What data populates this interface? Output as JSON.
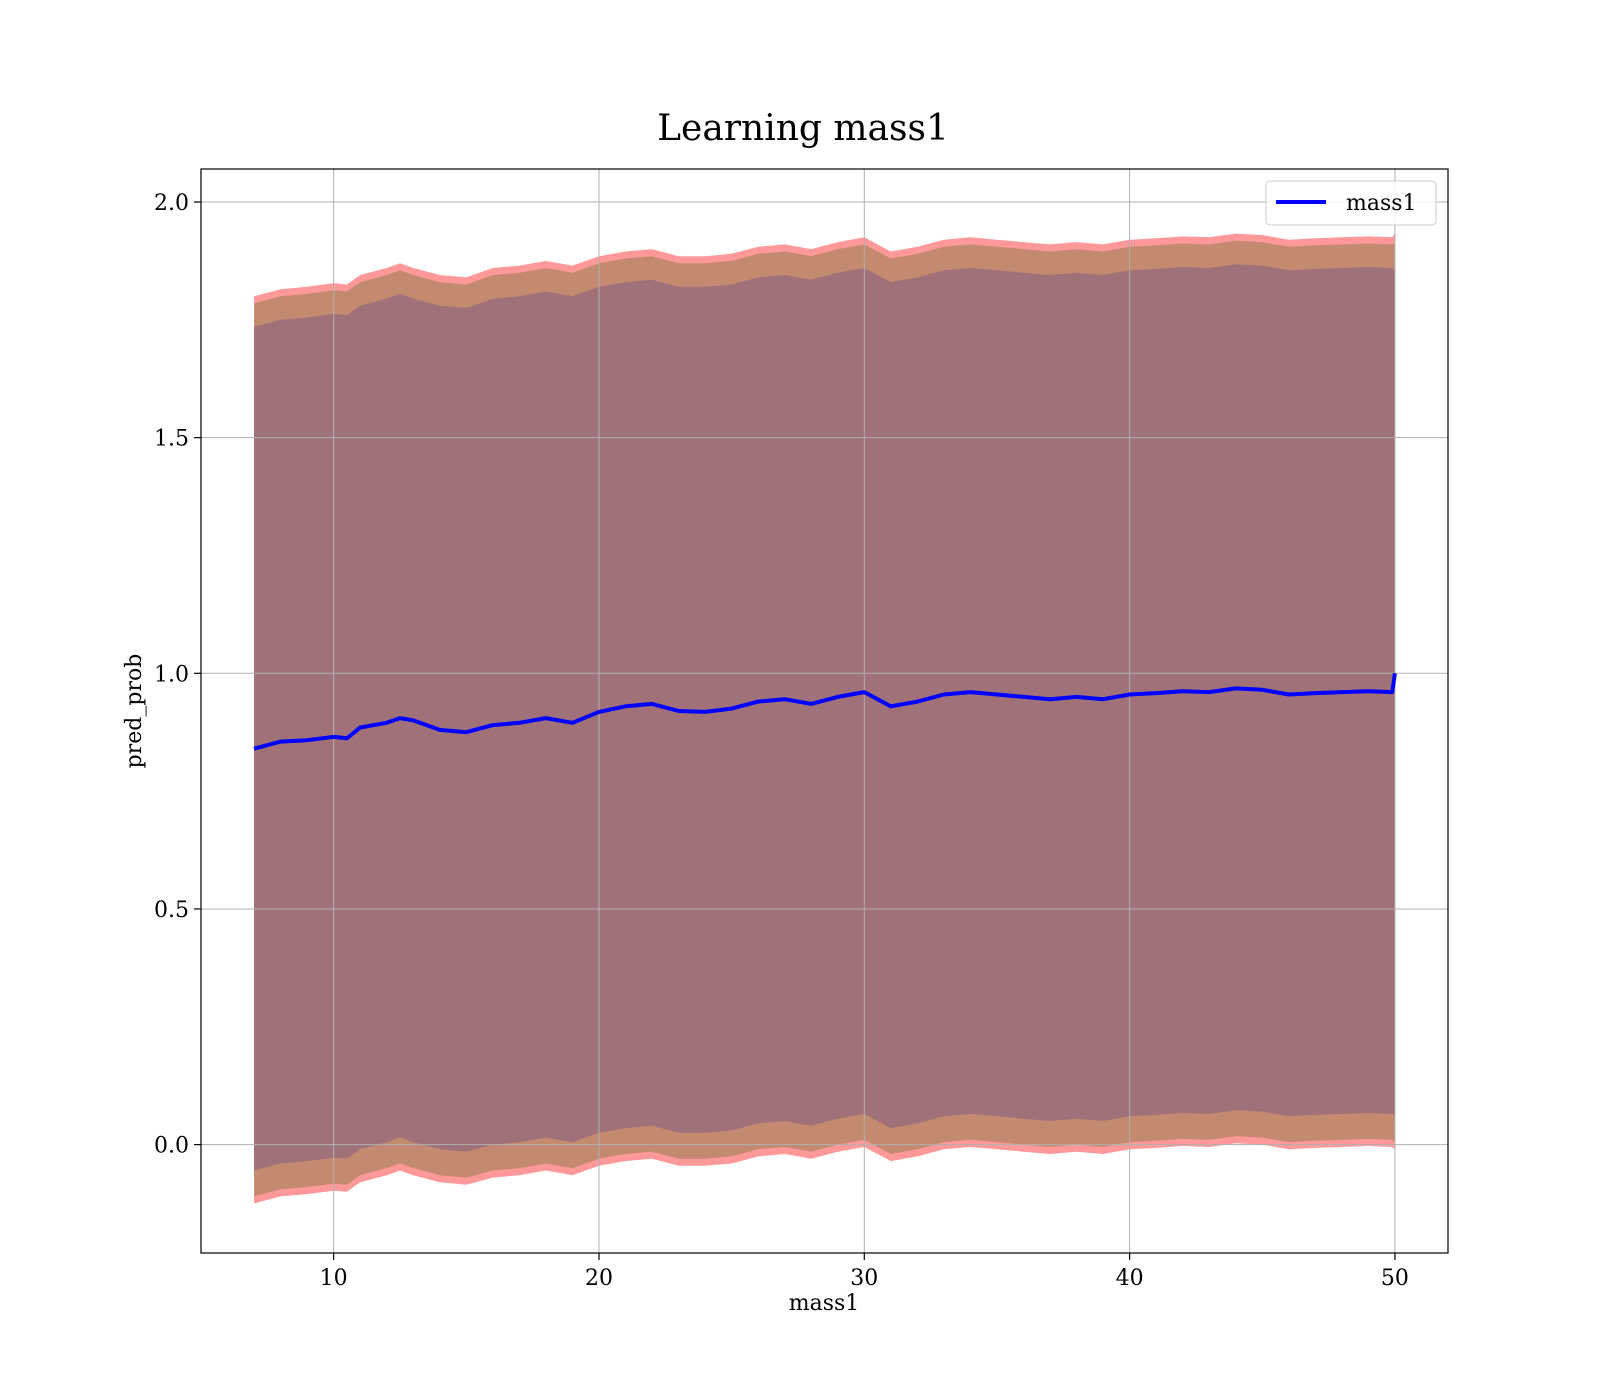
{
  "chart_data": {
    "type": "line",
    "title": "Learning mass1",
    "xlabel": "mass1",
    "ylabel": "pred_prob",
    "xlim": [
      5,
      52
    ],
    "ylim": [
      -0.23,
      2.07
    ],
    "xticks": [
      10,
      20,
      30,
      40,
      50
    ],
    "xtick_labels": [
      "10",
      "20",
      "30",
      "40",
      "50"
    ],
    "yticks": [
      0.0,
      0.5,
      1.0,
      1.5,
      2.0
    ],
    "ytick_labels": [
      "0.0",
      "0.5",
      "1.0",
      "1.5",
      "2.0"
    ],
    "grid": true,
    "legend_position": "top-right",
    "colors": {
      "line": "#0000ff",
      "outer_band": "#ff9999",
      "middle_band": "#c48a6f",
      "inner_band": "#a1717a"
    },
    "series": [
      {
        "name": "mass1",
        "x": [
          7,
          8,
          9,
          10,
          10.5,
          11,
          12,
          12.5,
          13,
          14,
          15,
          16,
          17,
          18,
          19,
          20,
          21,
          22,
          23,
          24,
          25,
          26,
          27,
          28,
          29,
          30,
          31,
          32,
          33,
          34,
          35,
          36,
          37,
          38,
          39,
          40,
          41,
          42,
          43,
          44,
          45,
          46,
          47,
          48,
          49,
          49.9,
          50
        ],
        "y": [
          0.84,
          0.855,
          0.858,
          0.865,
          0.862,
          0.885,
          0.895,
          0.905,
          0.9,
          0.88,
          0.875,
          0.89,
          0.895,
          0.905,
          0.895,
          0.918,
          0.93,
          0.935,
          0.92,
          0.918,
          0.925,
          0.94,
          0.945,
          0.935,
          0.95,
          0.96,
          0.93,
          0.94,
          0.955,
          0.96,
          0.955,
          0.95,
          0.945,
          0.95,
          0.945,
          0.955,
          0.958,
          0.962,
          0.96,
          0.968,
          0.965,
          0.955,
          0.958,
          0.96,
          0.962,
          0.96,
          1.0
        ]
      }
    ],
    "bands": [
      {
        "x": [
          7,
          8,
          9,
          10,
          10.5,
          11,
          12,
          12.5,
          13,
          14,
          15,
          16,
          17,
          18,
          19,
          20,
          21,
          22,
          23,
          24,
          25,
          26,
          27,
          28,
          29,
          30,
          31,
          32,
          33,
          34,
          35,
          36,
          37,
          38,
          39,
          40,
          41,
          42,
          43,
          44,
          45,
          46,
          47,
          48,
          49,
          49.9,
          50
        ],
        "upper": [
          1.8,
          1.815,
          1.82,
          1.828,
          1.825,
          1.845,
          1.86,
          1.87,
          1.86,
          1.845,
          1.84,
          1.86,
          1.865,
          1.875,
          1.865,
          1.885,
          1.895,
          1.9,
          1.885,
          1.885,
          1.89,
          1.905,
          1.91,
          1.9,
          1.915,
          1.925,
          1.895,
          1.905,
          1.92,
          1.925,
          1.92,
          1.915,
          1.91,
          1.915,
          1.91,
          1.92,
          1.923,
          1.927,
          1.925,
          1.933,
          1.93,
          1.92,
          1.923,
          1.925,
          1.927,
          1.925,
          1.935
        ],
        "lower": [
          -0.125,
          -0.11,
          -0.105,
          -0.098,
          -0.1,
          -0.08,
          -0.065,
          -0.055,
          -0.065,
          -0.08,
          -0.085,
          -0.07,
          -0.065,
          -0.055,
          -0.065,
          -0.045,
          -0.035,
          -0.03,
          -0.045,
          -0.045,
          -0.04,
          -0.025,
          -0.02,
          -0.03,
          -0.015,
          -0.005,
          -0.035,
          -0.025,
          -0.01,
          -0.005,
          -0.01,
          -0.015,
          -0.02,
          -0.015,
          -0.02,
          -0.01,
          -0.007,
          -0.003,
          -0.005,
          0.003,
          0.0,
          -0.01,
          -0.007,
          -0.005,
          -0.003,
          -0.005,
          -0.01
        ]
      },
      {
        "x": [
          7,
          8,
          9,
          10,
          10.5,
          11,
          12,
          12.5,
          13,
          14,
          15,
          16,
          17,
          18,
          19,
          20,
          21,
          22,
          23,
          24,
          25,
          26,
          27,
          28,
          29,
          30,
          31,
          32,
          33,
          34,
          35,
          36,
          37,
          38,
          39,
          40,
          41,
          42,
          43,
          44,
          45,
          46,
          47,
          48,
          49,
          49.9,
          50
        ],
        "upper": [
          1.785,
          1.8,
          1.805,
          1.813,
          1.81,
          1.83,
          1.845,
          1.855,
          1.845,
          1.83,
          1.825,
          1.845,
          1.85,
          1.86,
          1.85,
          1.87,
          1.88,
          1.885,
          1.87,
          1.87,
          1.875,
          1.89,
          1.895,
          1.885,
          1.9,
          1.91,
          1.88,
          1.89,
          1.905,
          1.91,
          1.905,
          1.9,
          1.895,
          1.9,
          1.895,
          1.905,
          1.908,
          1.912,
          1.91,
          1.918,
          1.915,
          1.905,
          1.908,
          1.91,
          1.912,
          1.91,
          1.915
        ],
        "lower": [
          -0.11,
          -0.095,
          -0.09,
          -0.083,
          -0.085,
          -0.065,
          -0.05,
          -0.04,
          -0.05,
          -0.065,
          -0.07,
          -0.055,
          -0.05,
          -0.04,
          -0.05,
          -0.03,
          -0.02,
          -0.015,
          -0.03,
          -0.03,
          -0.025,
          -0.01,
          -0.005,
          -0.015,
          0.0,
          0.01,
          -0.02,
          -0.01,
          0.005,
          0.01,
          0.005,
          0.0,
          -0.005,
          0.0,
          -0.005,
          0.005,
          0.008,
          0.012,
          0.01,
          0.018,
          0.015,
          0.005,
          0.008,
          0.01,
          0.012,
          0.01,
          0.005
        ]
      },
      {
        "x": [
          7,
          8,
          9,
          10,
          10.5,
          11,
          12,
          12.5,
          13,
          14,
          15,
          16,
          17,
          18,
          19,
          20,
          21,
          22,
          23,
          24,
          25,
          26,
          27,
          28,
          29,
          30,
          31,
          32,
          33,
          34,
          35,
          36,
          37,
          38,
          39,
          40,
          41,
          42,
          43,
          44,
          45,
          46,
          47,
          48,
          49,
          49.9,
          50
        ],
        "upper": [
          1.735,
          1.75,
          1.755,
          1.763,
          1.76,
          1.78,
          1.795,
          1.805,
          1.795,
          1.78,
          1.775,
          1.795,
          1.8,
          1.81,
          1.8,
          1.82,
          1.83,
          1.835,
          1.82,
          1.82,
          1.825,
          1.84,
          1.845,
          1.835,
          1.85,
          1.86,
          1.83,
          1.84,
          1.855,
          1.86,
          1.855,
          1.85,
          1.845,
          1.85,
          1.845,
          1.855,
          1.858,
          1.862,
          1.86,
          1.868,
          1.865,
          1.855,
          1.858,
          1.86,
          1.862,
          1.86,
          1.855
        ],
        "lower": [
          -0.055,
          -0.04,
          -0.035,
          -0.028,
          -0.03,
          -0.01,
          0.005,
          0.015,
          0.005,
          -0.01,
          -0.015,
          0.0,
          0.005,
          0.015,
          0.005,
          0.025,
          0.035,
          0.04,
          0.025,
          0.025,
          0.03,
          0.045,
          0.05,
          0.04,
          0.055,
          0.065,
          0.035,
          0.045,
          0.06,
          0.065,
          0.06,
          0.055,
          0.05,
          0.055,
          0.05,
          0.06,
          0.063,
          0.067,
          0.065,
          0.073,
          0.07,
          0.06,
          0.063,
          0.065,
          0.067,
          0.065,
          0.06
        ]
      }
    ]
  }
}
